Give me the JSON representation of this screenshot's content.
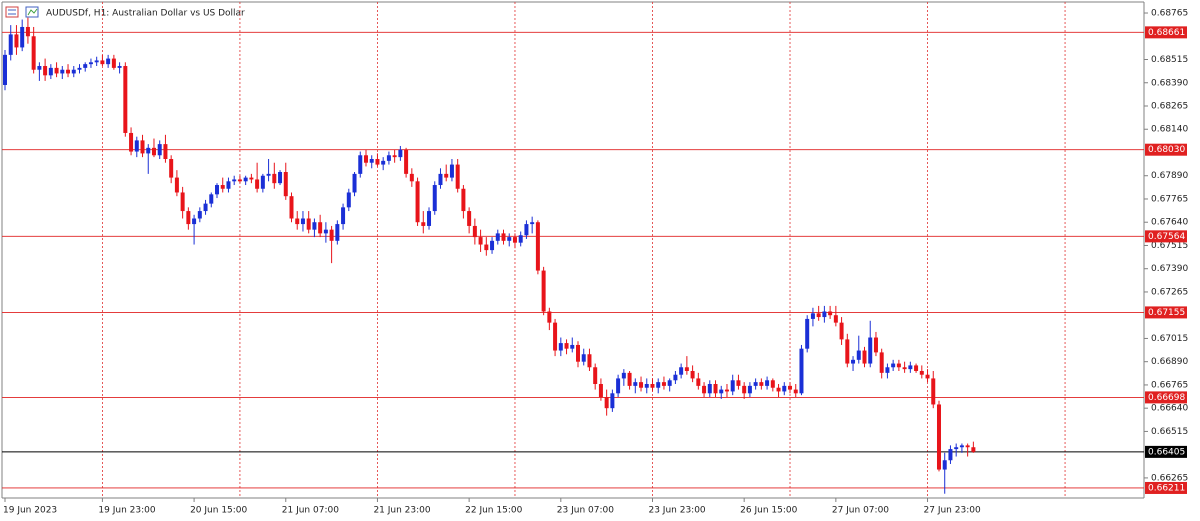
{
  "chart_data": {
    "type": "candlestick",
    "title": "AUDUSDf, H1:  Australian Dollar vs US Dollar",
    "up_color": "#1a2fd6",
    "down_color": "#e8141a",
    "level_color": "#e02020",
    "current_color": "#000000",
    "ylim": [
      0.66157,
      0.68835
    ],
    "yticks": [
      0.68765,
      0.68515,
      {
        "value": 0.6839,
        "label": "0.68390"
      },
      0.68265,
      {
        "value": 0.6814,
        "label": "0.68140"
      },
      {
        "value": 0.6789,
        "label": "0.67890"
      },
      0.67765,
      {
        "value": 0.6764,
        "label": "0.67640"
      },
      0.67515,
      {
        "value": 0.6739,
        "label": "0.67390"
      },
      0.67265,
      0.67015,
      {
        "value": 0.6689,
        "label": "0.66890"
      },
      0.66765,
      {
        "value": 0.6664,
        "label": "0.66640"
      },
      0.66515,
      0.66265
    ],
    "levels": [
      0.68661,
      {
        "value": 0.6803,
        "label": "0.68030"
      },
      0.67564,
      0.67155,
      0.66698,
      0.66211
    ],
    "current_price": 0.66405,
    "categories": [
      "19 Jun 2023",
      null,
      null,
      null,
      null,
      null,
      null,
      null,
      null,
      null,
      null,
      null,
      null,
      null,
      null,
      null,
      null,
      "19 Jun 23:00",
      null,
      null,
      null,
      null,
      null,
      null,
      null,
      null,
      null,
      null,
      null,
      null,
      null,
      null,
      null,
      "20 Jun 15:00",
      null,
      null,
      null,
      null,
      null,
      null,
      null,
      null,
      null,
      null,
      null,
      null,
      null,
      null,
      null,
      "21 Jun 07:00",
      null,
      null,
      null,
      null,
      null,
      null,
      null,
      null,
      null,
      null,
      null,
      null,
      null,
      null,
      null,
      "21 Jun 23:00",
      null,
      null,
      null,
      null,
      null,
      null,
      null,
      null,
      null,
      null,
      null,
      null,
      null,
      null,
      null,
      "22 Jun 15:00",
      null,
      null,
      null,
      null,
      null,
      null,
      null,
      null,
      null,
      null,
      null,
      null,
      null,
      null,
      null,
      "23 Jun 07:00",
      null,
      null,
      null,
      null,
      null,
      null,
      null,
      null,
      null,
      null,
      null,
      null,
      null,
      null,
      null,
      "23 Jun 23:00",
      null,
      null,
      null,
      null,
      null,
      null,
      null,
      null,
      null,
      null,
      null,
      null,
      null,
      null,
      null,
      "26 Jun 15:00",
      null,
      null,
      null,
      null,
      null,
      null,
      null,
      null,
      null,
      null,
      null,
      null,
      null,
      null,
      null,
      "27 Jun 07:00",
      null,
      null,
      null,
      null,
      null,
      null,
      null,
      null,
      null,
      null,
      null,
      null,
      null,
      null,
      null,
      "27 Jun 23:00",
      null,
      null,
      null,
      null,
      null,
      null,
      null,
      null
    ],
    "candles": [
      [
        0.68378,
        0.68566,
        0.6835,
        0.6854
      ],
      [
        0.6854,
        0.687,
        0.6851,
        0.6865
      ],
      [
        0.6865,
        0.687,
        0.6854,
        0.6858
      ],
      [
        0.6858,
        0.6873,
        0.6856,
        0.6869
      ],
      [
        0.6869,
        0.6874,
        0.686,
        0.6864
      ],
      [
        0.6864,
        0.6869,
        0.6844,
        0.6846
      ],
      [
        0.6846,
        0.685,
        0.684,
        0.6848
      ],
      [
        0.6848,
        0.6852,
        0.684,
        0.6843
      ],
      [
        0.6843,
        0.6849,
        0.6841,
        0.6847
      ],
      [
        0.6847,
        0.685,
        0.6842,
        0.6844
      ],
      [
        0.6844,
        0.6848,
        0.6841,
        0.6846
      ],
      [
        0.6846,
        0.6849,
        0.6842,
        0.6844
      ],
      [
        0.6844,
        0.6848,
        0.6842,
        0.6846
      ],
      [
        0.6846,
        0.6849,
        0.6844,
        0.6847
      ],
      [
        0.6847,
        0.685,
        0.6845,
        0.6849
      ],
      [
        0.6849,
        0.6852,
        0.6847,
        0.685
      ],
      [
        0.685,
        0.6853,
        0.6848,
        0.6851
      ],
      [
        0.6851,
        0.6854,
        0.6848,
        0.6849
      ],
      [
        0.6849,
        0.6854,
        0.6847,
        0.6852
      ],
      [
        0.6852,
        0.6854,
        0.6846,
        0.6847
      ],
      [
        0.6847,
        0.685,
        0.6844,
        0.6848
      ],
      [
        0.6848,
        0.685,
        0.681,
        0.6812
      ],
      [
        0.6812,
        0.6815,
        0.68,
        0.6802
      ],
      [
        0.6802,
        0.681,
        0.6799,
        0.6808
      ],
      [
        0.6808,
        0.6811,
        0.6799,
        0.6801
      ],
      [
        0.6801,
        0.6806,
        0.679,
        0.6804
      ],
      [
        0.6804,
        0.6809,
        0.6799,
        0.68
      ],
      [
        0.68,
        0.6808,
        0.6798,
        0.6806
      ],
      [
        0.6806,
        0.6811,
        0.6796,
        0.6798
      ],
      [
        0.6798,
        0.68,
        0.6785,
        0.6788
      ],
      [
        0.6788,
        0.6792,
        0.6778,
        0.678
      ],
      [
        0.678,
        0.6783,
        0.6766,
        0.677
      ],
      [
        0.677,
        0.6772,
        0.676,
        0.6763
      ],
      [
        0.6763,
        0.6768,
        0.6752,
        0.6766
      ],
      [
        0.6766,
        0.6772,
        0.6764,
        0.677
      ],
      [
        0.677,
        0.6776,
        0.6768,
        0.6774
      ],
      [
        0.6774,
        0.678,
        0.6772,
        0.6779
      ],
      [
        0.6779,
        0.6785,
        0.6777,
        0.6784
      ],
      [
        0.6784,
        0.6788,
        0.678,
        0.6782
      ],
      [
        0.6782,
        0.6788,
        0.678,
        0.6786
      ],
      [
        0.6786,
        0.6789,
        0.6784,
        0.6787
      ],
      [
        0.6787,
        0.6789,
        0.6785,
        0.6786
      ],
      [
        0.6786,
        0.6789,
        0.6784,
        0.6788
      ],
      [
        0.6788,
        0.679,
        0.6785,
        0.6787
      ],
      [
        0.6787,
        0.6796,
        0.678,
        0.6782
      ],
      [
        0.6782,
        0.679,
        0.678,
        0.6789
      ],
      [
        0.6789,
        0.6798,
        0.6786,
        0.679
      ],
      [
        0.679,
        0.6796,
        0.6782,
        0.6785
      ],
      [
        0.6785,
        0.6792,
        0.6784,
        0.6791
      ],
      [
        0.6791,
        0.6796,
        0.6776,
        0.6778
      ],
      [
        0.6778,
        0.678,
        0.6764,
        0.6766
      ],
      [
        0.6766,
        0.677,
        0.676,
        0.6763
      ],
      [
        0.6763,
        0.677,
        0.6759,
        0.6766
      ],
      [
        0.6766,
        0.677,
        0.6758,
        0.676
      ],
      [
        0.676,
        0.6766,
        0.6756,
        0.6764
      ],
      [
        0.6764,
        0.6768,
        0.6756,
        0.6758
      ],
      [
        0.6758,
        0.6764,
        0.6753,
        0.676
      ],
      [
        0.676,
        0.6762,
        0.6742,
        0.6754
      ],
      [
        0.6754,
        0.6765,
        0.6752,
        0.6763
      ],
      [
        0.6763,
        0.6774,
        0.676,
        0.6772
      ],
      [
        0.6772,
        0.6782,
        0.677,
        0.678
      ],
      [
        0.678,
        0.6791,
        0.6778,
        0.679
      ],
      [
        0.679,
        0.6802,
        0.6788,
        0.68
      ],
      [
        0.68,
        0.6803,
        0.6794,
        0.6796
      ],
      [
        0.6796,
        0.68,
        0.6793,
        0.6798
      ],
      [
        0.6798,
        0.6801,
        0.6794,
        0.6795
      ],
      [
        0.6795,
        0.6799,
        0.6792,
        0.6797
      ],
      [
        0.6797,
        0.6802,
        0.6795,
        0.68
      ],
      [
        0.68,
        0.6803,
        0.6796,
        0.6799
      ],
      [
        0.6799,
        0.6805,
        0.6797,
        0.6803
      ],
      [
        0.6803,
        0.6804,
        0.6788,
        0.679
      ],
      [
        0.679,
        0.6793,
        0.6783,
        0.6786
      ],
      [
        0.6786,
        0.6788,
        0.6762,
        0.6764
      ],
      [
        0.6764,
        0.677,
        0.6758,
        0.6762
      ],
      [
        0.6762,
        0.6772,
        0.676,
        0.677
      ],
      [
        0.677,
        0.6786,
        0.6768,
        0.6784
      ],
      [
        0.6784,
        0.6793,
        0.6782,
        0.679
      ],
      [
        0.679,
        0.6795,
        0.6786,
        0.6788
      ],
      [
        0.6788,
        0.6798,
        0.6786,
        0.6795
      ],
      [
        0.6795,
        0.6798,
        0.678,
        0.6782
      ],
      [
        0.6782,
        0.6784,
        0.6766,
        0.677
      ],
      [
        0.677,
        0.6772,
        0.6758,
        0.6762
      ],
      [
        0.6762,
        0.6766,
        0.6752,
        0.6756
      ],
      [
        0.6756,
        0.676,
        0.6748,
        0.6752
      ],
      [
        0.6752,
        0.6756,
        0.6746,
        0.6749
      ],
      [
        0.6749,
        0.6756,
        0.6747,
        0.6754
      ],
      [
        0.6754,
        0.676,
        0.6752,
        0.6758
      ],
      [
        0.6758,
        0.676,
        0.6752,
        0.6754
      ],
      [
        0.6754,
        0.6758,
        0.6751,
        0.6756
      ],
      [
        0.6756,
        0.6758,
        0.675,
        0.6753
      ],
      [
        0.6753,
        0.6759,
        0.6751,
        0.6757
      ],
      [
        0.6757,
        0.6765,
        0.6755,
        0.6763
      ],
      [
        0.6763,
        0.6767,
        0.6758,
        0.6764
      ],
      [
        0.6764,
        0.6765,
        0.6736,
        0.6738
      ],
      [
        0.6738,
        0.674,
        0.6714,
        0.6716
      ],
      [
        0.6716,
        0.6718,
        0.6706,
        0.671
      ],
      [
        0.671,
        0.6712,
        0.6692,
        0.6695
      ],
      [
        0.6695,
        0.6702,
        0.6692,
        0.6699
      ],
      [
        0.6699,
        0.6701,
        0.6693,
        0.6696
      ],
      [
        0.6696,
        0.6702,
        0.6694,
        0.6698
      ],
      [
        0.6698,
        0.67,
        0.6686,
        0.6689
      ],
      [
        0.6689,
        0.6696,
        0.6687,
        0.6693
      ],
      [
        0.6693,
        0.6696,
        0.6684,
        0.6686
      ],
      [
        0.6686,
        0.6688,
        0.6674,
        0.6677
      ],
      [
        0.6677,
        0.668,
        0.6668,
        0.667
      ],
      [
        0.667,
        0.6674,
        0.666,
        0.6664
      ],
      [
        0.6664,
        0.6674,
        0.6662,
        0.6672
      ],
      [
        0.6672,
        0.6682,
        0.667,
        0.668
      ],
      [
        0.668,
        0.6685,
        0.6676,
        0.6683
      ],
      [
        0.6683,
        0.6684,
        0.6674,
        0.6676
      ],
      [
        0.6676,
        0.668,
        0.6672,
        0.6678
      ],
      [
        0.6678,
        0.6681,
        0.6673,
        0.6675
      ],
      [
        0.6675,
        0.668,
        0.6672,
        0.6677
      ],
      [
        0.6677,
        0.668,
        0.6673,
        0.6675
      ],
      [
        0.6675,
        0.668,
        0.6672,
        0.6678
      ],
      [
        0.6678,
        0.6681,
        0.6674,
        0.6676
      ],
      [
        0.6676,
        0.668,
        0.6673,
        0.6679
      ],
      [
        0.6679,
        0.6684,
        0.6677,
        0.6682
      ],
      [
        0.6682,
        0.6688,
        0.668,
        0.6686
      ],
      [
        0.6686,
        0.6692,
        0.6682,
        0.6684
      ],
      [
        0.6684,
        0.6687,
        0.6678,
        0.668
      ],
      [
        0.668,
        0.6683,
        0.6674,
        0.6676
      ],
      [
        0.6676,
        0.6678,
        0.667,
        0.6672
      ],
      [
        0.6672,
        0.6679,
        0.667,
        0.6677
      ],
      [
        0.6677,
        0.6679,
        0.667,
        0.6672
      ],
      [
        0.6672,
        0.6676,
        0.6669,
        0.6674
      ],
      [
        0.6674,
        0.6677,
        0.667,
        0.6673
      ],
      [
        0.6673,
        0.6682,
        0.6671,
        0.6679
      ],
      [
        0.6679,
        0.6682,
        0.6674,
        0.6676
      ],
      [
        0.6676,
        0.6678,
        0.6669,
        0.6672
      ],
      [
        0.6672,
        0.6678,
        0.667,
        0.6676
      ],
      [
        0.6676,
        0.668,
        0.6674,
        0.6678
      ],
      [
        0.6678,
        0.668,
        0.6674,
        0.6676
      ],
      [
        0.6676,
        0.6681,
        0.6674,
        0.6679
      ],
      [
        0.6679,
        0.668,
        0.6673,
        0.6675
      ],
      [
        0.6675,
        0.6677,
        0.667,
        0.6673
      ],
      [
        0.6673,
        0.6678,
        0.6671,
        0.6676
      ],
      [
        0.6676,
        0.6678,
        0.6672,
        0.6674
      ],
      [
        0.6674,
        0.6677,
        0.667,
        0.6672
      ],
      [
        0.6672,
        0.6698,
        0.6671,
        0.6696
      ],
      [
        0.6696,
        0.6714,
        0.6694,
        0.6712
      ],
      [
        0.6712,
        0.6718,
        0.6708,
        0.6715
      ],
      [
        0.6715,
        0.6719,
        0.6711,
        0.6713
      ],
      [
        0.6713,
        0.6719,
        0.671,
        0.6716
      ],
      [
        0.6716,
        0.6719,
        0.6712,
        0.6714
      ],
      [
        0.6714,
        0.6719,
        0.6708,
        0.671
      ],
      [
        0.671,
        0.6713,
        0.6698,
        0.6701
      ],
      [
        0.6701,
        0.6704,
        0.6686,
        0.6688
      ],
      [
        0.6688,
        0.6692,
        0.6684,
        0.669
      ],
      [
        0.669,
        0.6703,
        0.6688,
        0.6695
      ],
      [
        0.6695,
        0.6697,
        0.6686,
        0.6688
      ],
      [
        0.6688,
        0.6711,
        0.6686,
        0.6702
      ],
      [
        0.6702,
        0.6705,
        0.6692,
        0.6694
      ],
      [
        0.6694,
        0.6696,
        0.668,
        0.6683
      ],
      [
        0.6683,
        0.6688,
        0.668,
        0.6686
      ],
      [
        0.6686,
        0.669,
        0.6684,
        0.6688
      ],
      [
        0.6688,
        0.669,
        0.6684,
        0.6686
      ],
      [
        0.6686,
        0.6689,
        0.6683,
        0.6685
      ],
      [
        0.6685,
        0.6689,
        0.6683,
        0.6687
      ],
      [
        0.6687,
        0.6688,
        0.6683,
        0.6684
      ],
      [
        0.6684,
        0.6687,
        0.668,
        0.6682
      ],
      [
        0.6682,
        0.6685,
        0.6678,
        0.668
      ],
      [
        0.668,
        0.6684,
        0.6664,
        0.6666
      ],
      [
        0.6666,
        0.6668,
        0.663,
        0.6631
      ],
      [
        0.6631,
        0.664,
        0.6618,
        0.6636
      ],
      [
        0.6636,
        0.6644,
        0.6634,
        0.6642
      ],
      [
        0.6642,
        0.6645,
        0.6638,
        0.6643
      ],
      [
        0.6643,
        0.6645,
        0.664,
        0.6644
      ],
      [
        0.6644,
        0.6645,
        0.6638,
        0.6643
      ],
      [
        0.6643,
        0.6646,
        0.664,
        0.66405
      ]
    ]
  }
}
